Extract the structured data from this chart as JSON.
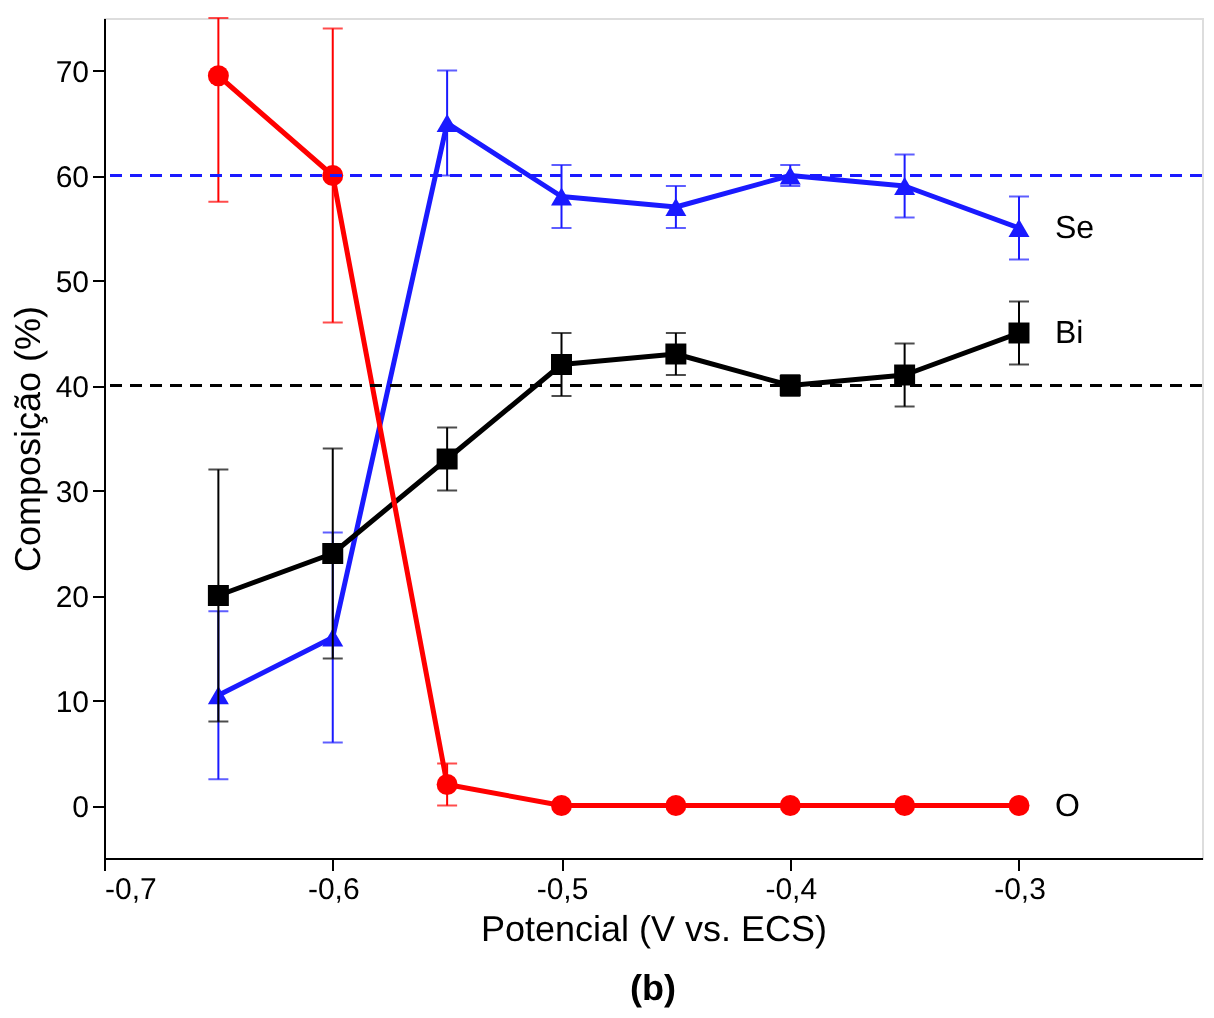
{
  "chart_data": {
    "type": "line",
    "xlabel": "Potencial (V vs. ECS)",
    "ylabel": "Composição (%)",
    "x": [
      -0.65,
      -0.6,
      -0.55,
      -0.5,
      -0.45,
      -0.4,
      -0.35,
      -0.3
    ],
    "series": [
      {
        "name": "Se",
        "color": "#1a1aff",
        "marker": "triangle",
        "values": [
          10.5,
          16,
          65,
          58,
          57,
          60,
          59,
          55
        ],
        "errors": [
          8,
          10,
          5,
          3,
          2,
          1,
          3,
          3
        ]
      },
      {
        "name": "Bi",
        "color": "#000000",
        "marker": "square",
        "values": [
          20,
          24,
          33,
          42,
          43,
          40,
          41,
          45
        ],
        "errors": [
          12,
          10,
          3,
          3,
          2,
          1,
          3,
          3
        ]
      },
      {
        "name": "O",
        "color": "#ff0000",
        "marker": "circle",
        "values": [
          69.5,
          60,
          2,
          0,
          0,
          0,
          0,
          0
        ],
        "errors": [
          [
            57.5,
            75
          ],
          14,
          2,
          null,
          null,
          null,
          null,
          null
        ]
      }
    ],
    "xlim": [
      -0.7,
      -0.22
    ],
    "xticks": [
      {
        "value": -0.7,
        "label": "-0,7"
      },
      {
        "value": -0.6,
        "label": "-0,6"
      },
      {
        "value": -0.5,
        "label": "-0,5"
      },
      {
        "value": -0.4,
        "label": "-0,4"
      },
      {
        "value": -0.3,
        "label": "-0,3"
      }
    ],
    "ylim": [
      -5,
      75
    ],
    "yticks": [
      0,
      10,
      20,
      30,
      40,
      50,
      60,
      70
    ],
    "ref_lines": [
      {
        "axis": "y",
        "value": 60,
        "color": "#1a1aff",
        "line_style": "dashed"
      },
      {
        "axis": "y",
        "value": 40,
        "color": "#000000",
        "line_style": "dashed"
      }
    ],
    "annotations": [
      "(b)"
    ],
    "grid": false,
    "legend": false,
    "line_style": "solid"
  }
}
